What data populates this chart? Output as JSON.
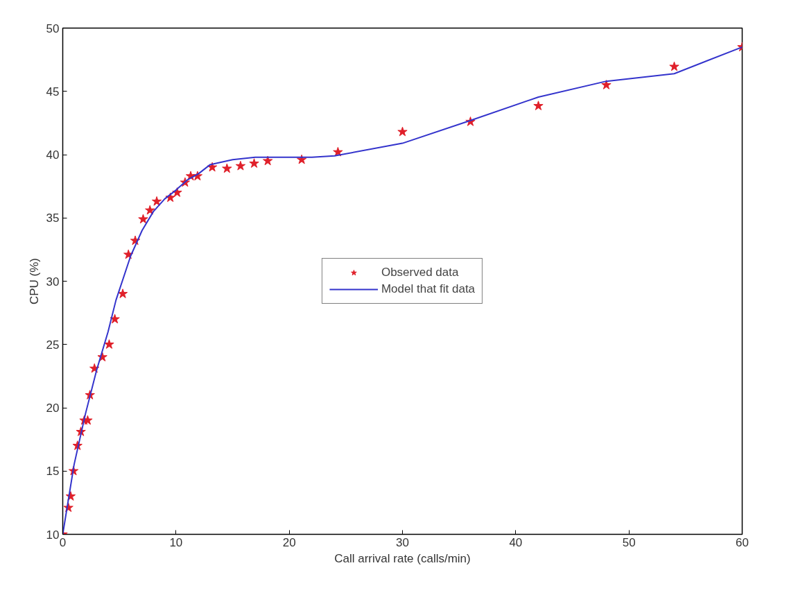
{
  "chart_data": {
    "type": "scatter",
    "xlabel": "Call arrival rate (calls/min)",
    "ylabel": "CPU (%)",
    "xlim": [
      0,
      60
    ],
    "ylim": [
      10,
      50
    ],
    "xticks": [
      0,
      10,
      20,
      30,
      40,
      50,
      60
    ],
    "yticks": [
      10,
      15,
      20,
      25,
      30,
      35,
      40,
      45,
      50
    ],
    "grid": false,
    "legend": "center",
    "series": [
      {
        "name": "Observed data",
        "marker": "star",
        "color": "#e0202a",
        "x": [
          0,
          0.5,
          0.7,
          0.95,
          1.3,
          1.6,
          1.9,
          2.2,
          2.4,
          2.8,
          3.5,
          4.1,
          4.6,
          5.3,
          5.8,
          6.4,
          7.1,
          7.7,
          8.3,
          9.5,
          10.1,
          10.8,
          11.3,
          11.9,
          13.2,
          14.5,
          15.7,
          16.9,
          18.1,
          21.1,
          24.3,
          30,
          36,
          42,
          48,
          54,
          60
        ],
        "values": [
          10,
          12.1,
          13,
          15,
          17,
          18.1,
          19,
          19,
          21,
          23.1,
          24,
          25,
          27,
          29,
          32.1,
          33.2,
          34.9,
          35.6,
          36.3,
          36.6,
          37,
          37.8,
          38.3,
          38.3,
          39,
          38.9,
          39.1,
          39.3,
          39.5,
          39.6,
          40.2,
          41.8,
          42.6,
          43.85,
          45.5,
          46.95,
          48.5
        ]
      },
      {
        "name": "Model that fit data",
        "type": "line",
        "line_style": "solid",
        "color": "#3333cc",
        "x": [
          0,
          1,
          2,
          3,
          4,
          4.7,
          6,
          7,
          8,
          9,
          10,
          11,
          12,
          13,
          15,
          17,
          20,
          22,
          24,
          30,
          36,
          42,
          48,
          54,
          60
        ],
        "values": [
          10,
          15.5,
          19.5,
          23,
          26,
          28.5,
          32,
          34,
          35.5,
          36.5,
          37.2,
          38,
          38.5,
          39.2,
          39.6,
          39.8,
          39.8,
          39.8,
          39.9,
          40.9,
          42.7,
          44.55,
          45.8,
          46.4,
          48.5
        ]
      }
    ]
  }
}
